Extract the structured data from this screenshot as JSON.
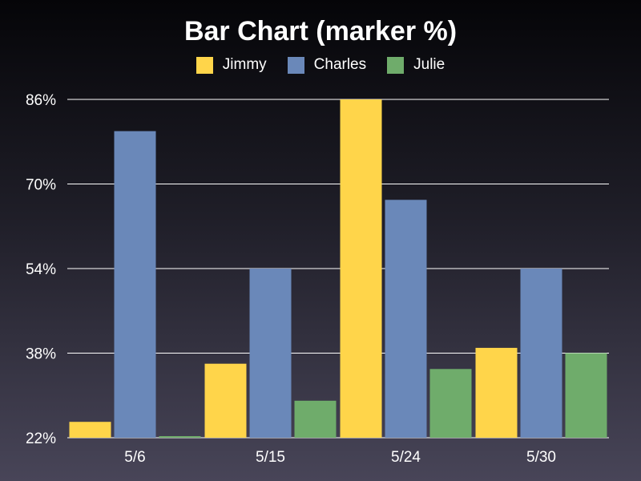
{
  "chart_data": {
    "type": "bar",
    "title": "Bar Chart (marker %)",
    "categories": [
      "5/6",
      "5/15",
      "5/24",
      "5/30"
    ],
    "series": [
      {
        "name": "Jimmy",
        "color": "#ffd54a",
        "values": [
          25,
          36,
          86,
          39
        ]
      },
      {
        "name": "Charles",
        "color": "#6a88b9",
        "values": [
          80,
          54,
          67,
          54
        ]
      },
      {
        "name": "Julie",
        "color": "#6fac6b",
        "values": [
          22.3,
          29,
          35,
          38
        ]
      }
    ],
    "ylim": [
      22,
      86
    ],
    "yticks": [
      "22%",
      "38%",
      "54%",
      "70%",
      "86%"
    ],
    "ytick_values": [
      22,
      38,
      54,
      70,
      86
    ],
    "xlabel": "",
    "ylabel": "",
    "grid": true,
    "legend_position": "top-center"
  }
}
